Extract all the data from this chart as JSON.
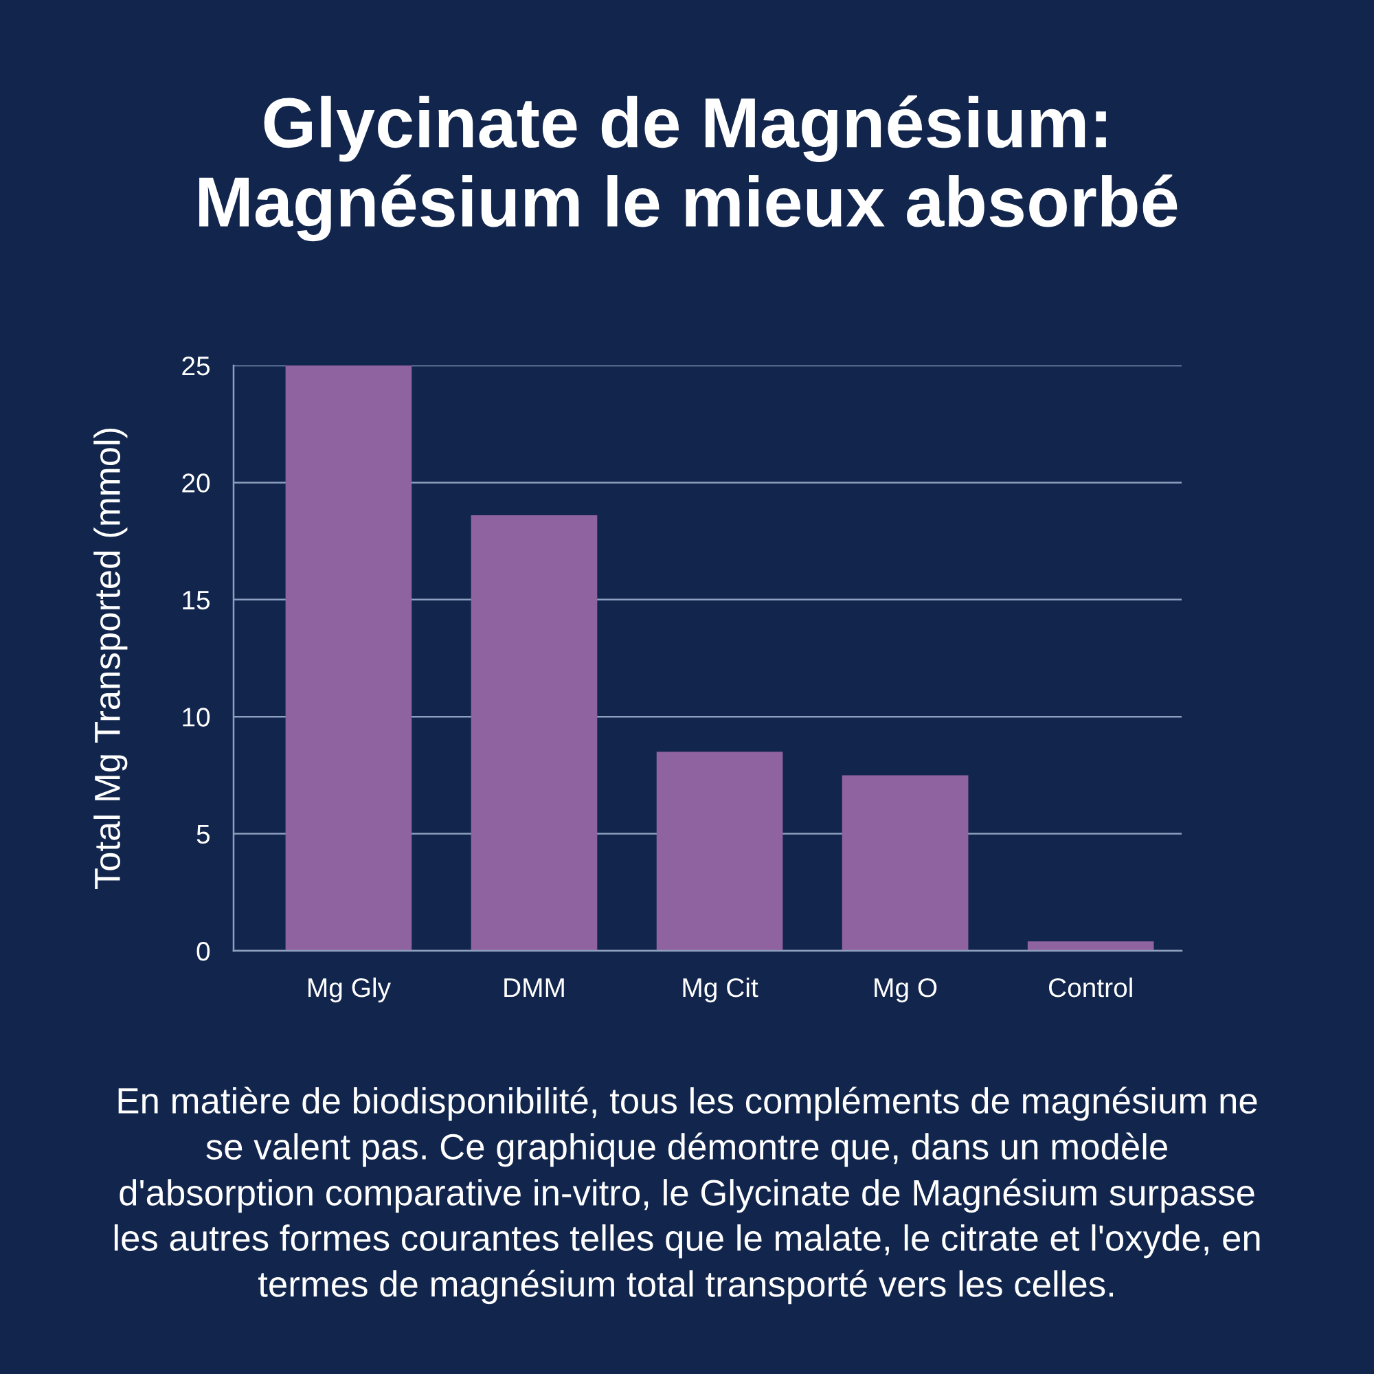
{
  "chart_data": {
    "type": "bar",
    "title": "Glycinate de Magnésium:\nMagnésium le mieux absorbé",
    "ylabel": "Total Mg Transported (mmol)",
    "categories": [
      "Mg Gly",
      "DMM",
      "Mg Cit",
      "Mg O",
      "Control"
    ],
    "values": [
      25,
      18.6,
      8.5,
      7.5,
      0.4
    ],
    "color": "#8f62a0",
    "ylim": [
      0,
      25
    ],
    "yticks": [
      0,
      5,
      10,
      15,
      20,
      25
    ],
    "grid": "y",
    "legend": false,
    "annotations": [
      "En matière de biodisponibilité, tous les compléments de magnésium ne\nse valent pas. Ce graphique démontre que, dans un modèle\nd'absorption comparative in-vitro, le Glycinate de Magnésium surpasse\nles autres formes courantes telles que le malate, le citrate et l'oxyde, en\ntermes de magnésium total transporté vers les celles."
    ]
  }
}
